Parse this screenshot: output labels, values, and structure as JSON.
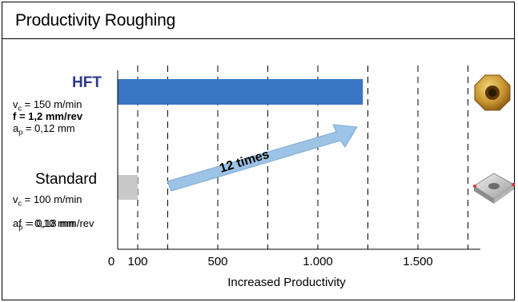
{
  "title": "Productivity Roughing",
  "chart_data": {
    "type": "bar",
    "orientation": "horizontal",
    "categories": [
      "HFT",
      "Standard"
    ],
    "values": [
      1225,
      100
    ],
    "colors": [
      "#3a75c4",
      "#c8c8c8"
    ],
    "xlabel": "Increased Productivity",
    "x_ticks": [
      0,
      100,
      500,
      1000,
      1500
    ],
    "x_tick_labels": [
      "0",
      "100",
      "500",
      "1.000",
      "1.500"
    ],
    "gridlines": [
      100,
      250,
      500,
      750,
      1000,
      1250,
      1500,
      1750
    ],
    "xlim": [
      0,
      1800
    ],
    "grid": true,
    "annotation": "12 times"
  },
  "hft": {
    "name": "HFT",
    "vc": "v",
    "vc_sub": "c",
    "vc_value": " = 150 m/min",
    "f_label": "f",
    "f_value": " = 1,2 mm/rev",
    "ap": "a",
    "ap_sub": "p",
    "ap_value": " = 0,12 mm"
  },
  "standard": {
    "name": "Standard",
    "vc": "v",
    "vc_sub": "c",
    "vc_value": " = 100 m/min",
    "f_label": "f",
    "f_value": "  = 0,18 mm/rev",
    "ap": "a",
    "ap_sub": "p",
    "ap_value": " = 0,10 mm"
  },
  "icons": {
    "hft_insert": "octagonal-insert-icon",
    "standard_insert": "square-insert-icon"
  }
}
